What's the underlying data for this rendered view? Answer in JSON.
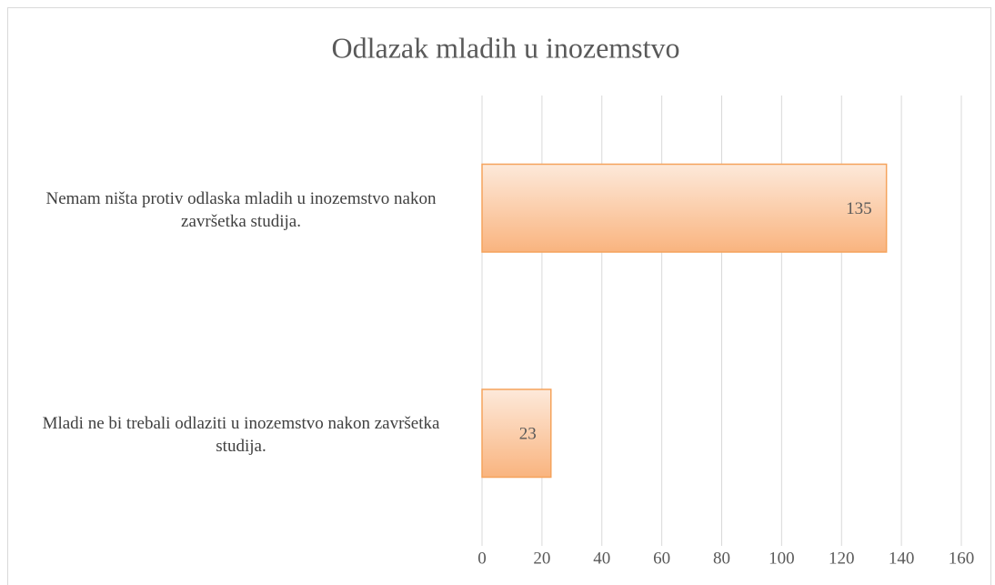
{
  "chart_data": {
    "type": "bar",
    "orientation": "horizontal",
    "title": "Odlazak mladih u inozemstvo",
    "categories": [
      "Nemam ništa protiv odlaska mladih u inozemstvo nakon završetka studija.",
      "Mladi ne bi trebali odlaziti u inozemstvo nakon završetka studija."
    ],
    "values": [
      135,
      23
    ],
    "color": "#f5a35c",
    "xlim": [
      0,
      160
    ],
    "xticks": [
      0,
      20,
      40,
      60,
      80,
      100,
      120,
      140,
      160
    ],
    "grid": true
  }
}
